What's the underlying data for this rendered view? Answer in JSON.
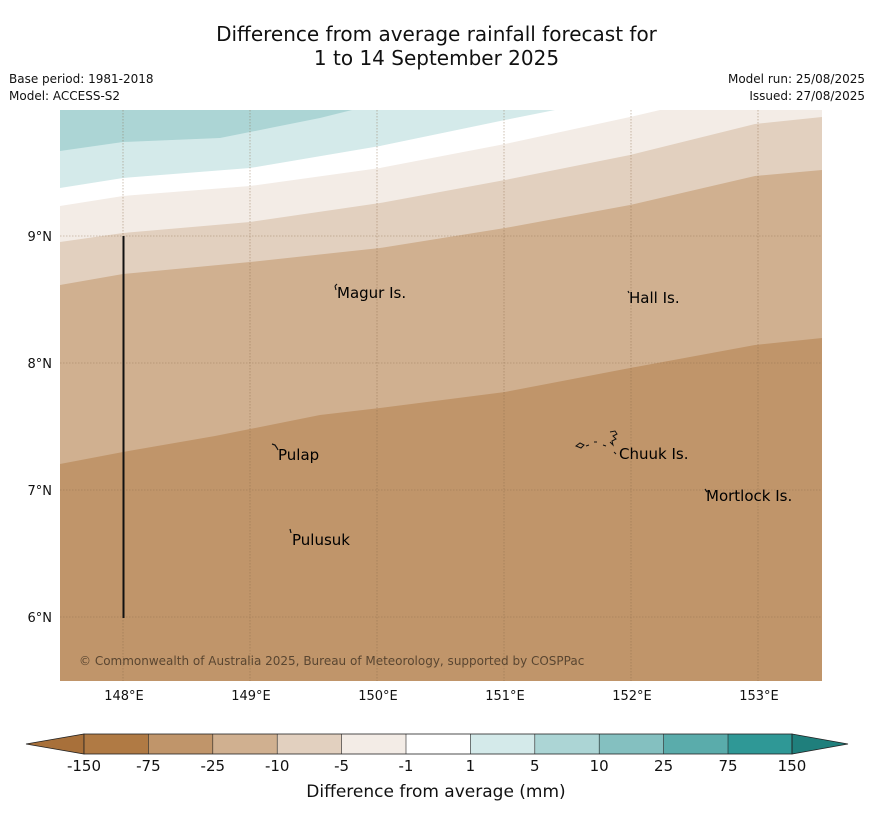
{
  "title_line1": "Difference from average rainfall forecast for",
  "title_line2": "1 to 14 September 2025",
  "base_period": "Base period: 1981-2018",
  "model": "Model: ACCESS-S2",
  "model_run": "Model run: 25/08/2025",
  "issued": "Issued: 27/08/2025",
  "copyright": "© Commonwealth of Australia 2025, Bureau of Meteorology, supported by COSPPac",
  "lat_labels": [
    "9°N",
    "8°N",
    "7°N",
    "6°N"
  ],
  "lon_labels": [
    "148°E",
    "149°E",
    "150°E",
    "151°E",
    "152°E",
    "153°E"
  ],
  "places": {
    "magur": "Magur Is.",
    "hall": "Hall Is.",
    "pulap": "Pulap",
    "chuuk": "Chuuk Is.",
    "mortlock": "Mortlock Is.",
    "pulusuk": "Pulusuk"
  },
  "colorbar": {
    "title": "Difference from average (mm)",
    "ticks": [
      "-150",
      "-75",
      "-25",
      "-10",
      "-5",
      "-1",
      "1",
      "5",
      "10",
      "25",
      "75",
      "150"
    ],
    "colors": {
      "below_min": "#a8703a",
      "-150_-75": "#b07a44",
      "-75_-25": "#c0956a",
      "-25_-10": "#d0b090",
      "-10_-5": "#e2d0bf",
      "-5_-1": "#f3ece6",
      "-1_1": "#ffffff",
      "1_5": "#d4eaea",
      "5_10": "#acd5d5",
      "10_25": "#84c0c0",
      "25_75": "#5aacab",
      "75_150": "#2f9896",
      "above_max": "#1f7f7c"
    }
  }
}
